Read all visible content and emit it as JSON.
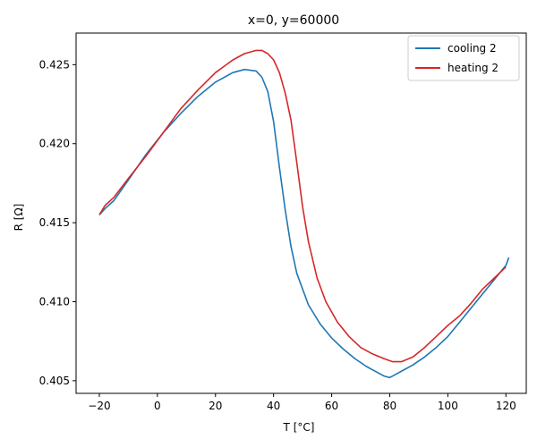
{
  "chart_data": {
    "type": "line",
    "title": "x=0, y=60000",
    "xlabel": "T [°C]",
    "ylabel": "R [Ω]",
    "xlim": [
      -28,
      127
    ],
    "ylim": [
      0.4042,
      0.427
    ],
    "xticks": [
      -20,
      0,
      20,
      40,
      60,
      80,
      100,
      120
    ],
    "yticks": [
      0.405,
      0.41,
      0.415,
      0.42,
      0.425
    ],
    "ytick_labels": [
      "0.405",
      "0.410",
      "0.415",
      "0.420",
      "0.425"
    ],
    "grid": false,
    "legend_position": "top-right",
    "series": [
      {
        "name": "cooling 2",
        "color": "#1f77b4",
        "points": [
          [
            121.0,
            0.4128
          ],
          [
            120.0,
            0.4123
          ],
          [
            116.0,
            0.4114
          ],
          [
            112.0,
            0.4105
          ],
          [
            108.0,
            0.4096
          ],
          [
            104.0,
            0.4087
          ],
          [
            100.0,
            0.4078
          ],
          [
            96.0,
            0.4071
          ],
          [
            92.0,
            0.4065
          ],
          [
            88.0,
            0.406
          ],
          [
            85.0,
            0.4057
          ],
          [
            82.0,
            0.4054
          ],
          [
            80.0,
            0.4052
          ],
          [
            78.0,
            0.4053
          ],
          [
            75.0,
            0.4056
          ],
          [
            72.0,
            0.4059
          ],
          [
            68.0,
            0.4064
          ],
          [
            64.0,
            0.407
          ],
          [
            60.0,
            0.4077
          ],
          [
            56.0,
            0.4086
          ],
          [
            52.0,
            0.4098
          ],
          [
            48.0,
            0.4118
          ],
          [
            46.0,
            0.4135
          ],
          [
            44.0,
            0.4158
          ],
          [
            42.0,
            0.4185
          ],
          [
            40.0,
            0.4214
          ],
          [
            38.0,
            0.4233
          ],
          [
            36.0,
            0.4242
          ],
          [
            34.0,
            0.4246
          ],
          [
            30.0,
            0.4247
          ],
          [
            26.0,
            0.4245
          ],
          [
            20.0,
            0.4239
          ],
          [
            14.0,
            0.423
          ],
          [
            8.0,
            0.4219
          ],
          [
            2.0,
            0.4207
          ],
          [
            -4.0,
            0.4193
          ],
          [
            -10.0,
            0.4177
          ],
          [
            -15.0,
            0.4164
          ],
          [
            -18.0,
            0.4159
          ],
          [
            -20.0,
            0.4155
          ]
        ]
      },
      {
        "name": "heating 2",
        "color": "#d62728",
        "points": [
          [
            -20.0,
            0.4155
          ],
          [
            -18.0,
            0.4161
          ],
          [
            -15.0,
            0.4166
          ],
          [
            -10.0,
            0.4178
          ],
          [
            -4.0,
            0.4192
          ],
          [
            2.0,
            0.4207
          ],
          [
            8.0,
            0.4222
          ],
          [
            14.0,
            0.4234
          ],
          [
            20.0,
            0.4245
          ],
          [
            26.0,
            0.4253
          ],
          [
            30.0,
            0.4257
          ],
          [
            34.0,
            0.4259
          ],
          [
            36.0,
            0.4259
          ],
          [
            38.0,
            0.4257
          ],
          [
            40.0,
            0.4253
          ],
          [
            42.0,
            0.4245
          ],
          [
            44.0,
            0.4232
          ],
          [
            46.0,
            0.4215
          ],
          [
            48.0,
            0.4188
          ],
          [
            50.0,
            0.416
          ],
          [
            52.0,
            0.4138
          ],
          [
            55.0,
            0.4115
          ],
          [
            58.0,
            0.41
          ],
          [
            62.0,
            0.4087
          ],
          [
            66.0,
            0.4078
          ],
          [
            70.0,
            0.4071
          ],
          [
            74.0,
            0.4067
          ],
          [
            78.0,
            0.4064
          ],
          [
            81.0,
            0.4062
          ],
          [
            84.0,
            0.4062
          ],
          [
            88.0,
            0.4065
          ],
          [
            92.0,
            0.4071
          ],
          [
            96.0,
            0.4078
          ],
          [
            100.0,
            0.4085
          ],
          [
            104.0,
            0.4091
          ],
          [
            108.0,
            0.4099
          ],
          [
            112.0,
            0.4108
          ],
          [
            116.0,
            0.4115
          ],
          [
            120.0,
            0.4122
          ]
        ]
      }
    ]
  }
}
